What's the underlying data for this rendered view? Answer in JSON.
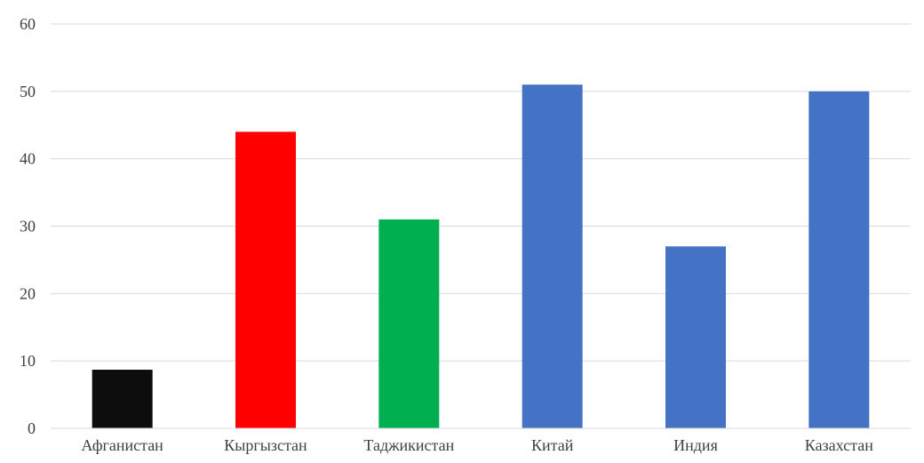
{
  "chart_data": {
    "type": "bar",
    "title": "",
    "xlabel": "",
    "ylabel": "",
    "categories": [
      "Афганистан",
      "Кыргызстан",
      "Таджикистан",
      "Китай",
      "Индия",
      "Казахстан"
    ],
    "values": [
      8.7,
      44,
      31,
      51,
      27,
      50
    ],
    "bar_colors": [
      "#0d0d0d",
      "#ff0000",
      "#00b050",
      "#4472c4",
      "#4472c4",
      "#4472c4"
    ],
    "ylim": [
      0,
      60
    ],
    "yticks": [
      0,
      10,
      20,
      30,
      40,
      50,
      60
    ],
    "grid": true,
    "legend": "none"
  }
}
